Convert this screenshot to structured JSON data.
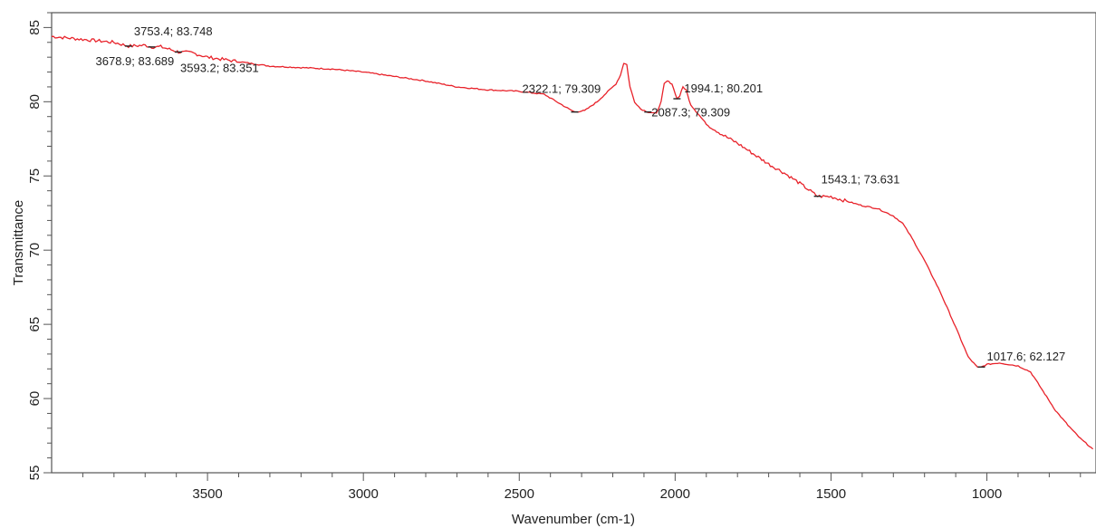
{
  "chart_data": {
    "type": "line",
    "title": "",
    "xlabel": "Wavenumber (cm-1)",
    "ylabel": "Transmittance",
    "xlim": [
      4000,
      650
    ],
    "ylim": [
      55,
      86
    ],
    "x_reversed": true,
    "grid": false,
    "legend": "none",
    "x_ticks": [
      "3500",
      "3000",
      "2500",
      "2000",
      "1500",
      "1000"
    ],
    "y_ticks": [
      "55",
      "60",
      "65",
      "70",
      "75",
      "80",
      "85"
    ],
    "series": [
      {
        "color": "#e8222a",
        "points": [
          [
            4000,
            84.4
          ],
          [
            3900,
            84.2
          ],
          [
            3800,
            84.0
          ],
          [
            3753.4,
            83.748
          ],
          [
            3700,
            83.8
          ],
          [
            3678.9,
            83.689
          ],
          [
            3650,
            83.7
          ],
          [
            3600,
            83.4
          ],
          [
            3593.2,
            83.351
          ],
          [
            3550,
            83.3
          ],
          [
            3500,
            83.0
          ],
          [
            3400,
            82.7
          ],
          [
            3300,
            82.4
          ],
          [
            3200,
            82.3
          ],
          [
            3100,
            82.2
          ],
          [
            3000,
            82.0
          ],
          [
            2900,
            81.7
          ],
          [
            2800,
            81.4
          ],
          [
            2700,
            81.0
          ],
          [
            2600,
            80.8
          ],
          [
            2500,
            80.7
          ],
          [
            2420,
            80.5
          ],
          [
            2380,
            80.0
          ],
          [
            2340,
            79.5
          ],
          [
            2322.1,
            79.309
          ],
          [
            2290,
            79.4
          ],
          [
            2250,
            80.0
          ],
          [
            2210,
            80.8
          ],
          [
            2190,
            81.2
          ],
          [
            2175,
            81.8
          ],
          [
            2165,
            82.6
          ],
          [
            2155,
            82.5
          ],
          [
            2145,
            81.0
          ],
          [
            2130,
            80.0
          ],
          [
            2110,
            79.5
          ],
          [
            2087.3,
            79.309
          ],
          [
            2060,
            79.2
          ],
          [
            2045,
            80.0
          ],
          [
            2035,
            81.2
          ],
          [
            2025,
            81.4
          ],
          [
            2010,
            81.2
          ],
          [
            1994.1,
            80.201
          ],
          [
            1985,
            80.4
          ],
          [
            1975,
            81.0
          ],
          [
            1965,
            80.8
          ],
          [
            1950,
            79.8
          ],
          [
            1900,
            78.5
          ],
          [
            1850,
            77.8
          ],
          [
            1800,
            77.2
          ],
          [
            1750,
            76.5
          ],
          [
            1700,
            75.8
          ],
          [
            1650,
            75.2
          ],
          [
            1600,
            74.5
          ],
          [
            1543.1,
            73.631
          ],
          [
            1500,
            73.6
          ],
          [
            1450,
            73.3
          ],
          [
            1400,
            73.0
          ],
          [
            1350,
            72.8
          ],
          [
            1300,
            72.3
          ],
          [
            1270,
            71.8
          ],
          [
            1240,
            70.8
          ],
          [
            1200,
            69.3
          ],
          [
            1150,
            67.2
          ],
          [
            1100,
            64.8
          ],
          [
            1060,
            62.8
          ],
          [
            1030,
            62.1
          ],
          [
            1017.6,
            62.127
          ],
          [
            1000,
            62.3
          ],
          [
            960,
            62.4
          ],
          [
            900,
            62.2
          ],
          [
            860,
            61.8
          ],
          [
            820,
            60.5
          ],
          [
            780,
            59.2
          ],
          [
            740,
            58.2
          ],
          [
            700,
            57.3
          ],
          [
            660,
            56.6
          ]
        ]
      }
    ],
    "annotations": [
      {
        "text": "3753.4; 83.748",
        "x": 3753.4,
        "y": 83.748
      },
      {
        "text": "3678.9; 83.689",
        "x": 3678.9,
        "y": 83.689
      },
      {
        "text": "3593.2; 83.351",
        "x": 3593.2,
        "y": 83.351
      },
      {
        "text": "2322.1; 79.309",
        "x": 2322.1,
        "y": 79.309
      },
      {
        "text": "2087.3; 79.309",
        "x": 2087.3,
        "y": 79.309
      },
      {
        "text": "1994.1; 80.201",
        "x": 1994.1,
        "y": 80.201
      },
      {
        "text": "1543.1; 73.631",
        "x": 1543.1,
        "y": 73.631
      },
      {
        "text": "1017.6; 62.127",
        "x": 1017.6,
        "y": 62.127
      }
    ]
  }
}
